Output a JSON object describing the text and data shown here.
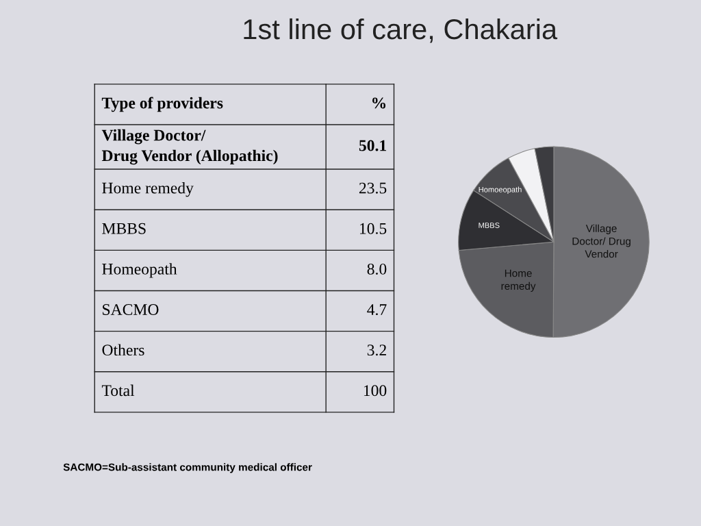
{
  "chart_data": {
    "type": "pie",
    "title": "1st line of care, Chakaria",
    "categories": [
      "Village\nDoctor/ Drug\nVendor",
      "Home\nremedy",
      "MBBS",
      "Homoeopath",
      null,
      null
    ],
    "values": [
      50.1,
      23.5,
      10.5,
      8.0,
      4.7,
      3.2
    ],
    "colors": [
      "#6f6f73",
      "#5c5c60",
      "#2f2f33",
      "#4a4a4e",
      "#f2f2f4",
      "#3c3c40"
    ],
    "annotations": [
      "Type of providers",
      "%",
      "Village Doctor/\nDrug Vendor (Allopathic)",
      "Home remedy",
      "MBBS",
      "Homeopath",
      "SACMO",
      "Others",
      "Total",
      "50.1",
      "23.5",
      "10.5",
      "8.0",
      "4.7",
      "3.2",
      "100",
      "SACMO=Sub-assistant community medical officer"
    ],
    "legend": false
  }
}
